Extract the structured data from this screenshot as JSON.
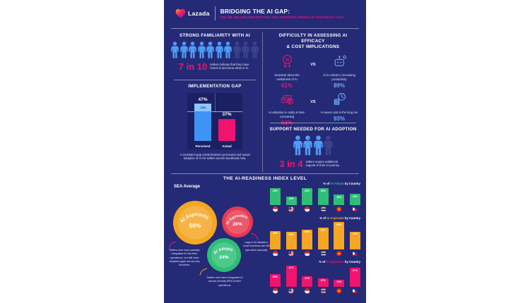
{
  "header": {
    "brand": "Lazada",
    "title": "BRIDGING THE AI GAP:",
    "subtitle": "ONLINE SELLER PERCEPTIONS AND ADOPTION TRENDS IN SOUTHEAST ASIA"
  },
  "colors": {
    "background": "#242A75",
    "panel": "#1B2063",
    "blue": "#4F9CF7",
    "dim_blue": "#3C438D",
    "pink": "#F0146E",
    "light_blue": "#6FA9FF",
    "yellow": "#F5A623",
    "red": "#E73A52",
    "green": "#2EBE76"
  },
  "familiarity": {
    "heading": "STRONG FAMILIARITY WITH AI",
    "total": 10,
    "highlighted": 7,
    "stat": "7 in 10",
    "caption": "sellers indicate that they have heard of and know what AI is."
  },
  "implementation_gap": {
    "heading": "IMPLEMENTATION GAP",
    "gap_label": "-10%",
    "caption": "A consistent gap exists between perceived and actual adoption of AI for sellers across Southeast Asia."
  },
  "difficulty": {
    "heading_line1": "DIFFICULTY IN ASSESSING AI EFFICACY",
    "heading_line2": "& COST IMPLICATIONS",
    "vs": "VS",
    "pairs": [
      {
        "left_icon": "ai-badge-icon",
        "left_text": "Sceptical about the usefulness of AI",
        "left_value": "61%",
        "right_icon": "robot-icon",
        "right_text": "AI is critical in increasing productivity",
        "right_value": "89%"
      },
      {
        "left_icon": "money-stack-icon",
        "left_text": "AI adoption is costly & time-consuming",
        "left_value": "64%",
        "right_icon": "coins-clock-icon",
        "right_text": "AI saves cost in the long run",
        "right_value": "93%"
      }
    ]
  },
  "support": {
    "heading": "SUPPORT NEEDED FOR AI ADOPTION",
    "total": 4,
    "highlighted": 3,
    "stat": "3 in 4",
    "caption": "sellers require additional support in their AI journey."
  },
  "readiness": {
    "heading": "THE AI-READINESS INDEX LEVEL",
    "sea_average_label": "SEA Average",
    "bubbles": [
      {
        "label": "AI Aspirants",
        "value": "50%",
        "color": "#F5A623",
        "note": "Sellers who have partially integrated AI into their operations, but still have adoption gaps across key functions."
      },
      {
        "label": "AI Agnostics",
        "value": "26%",
        "color": "#E73A52",
        "note": "Lags in AI adoption; most functions are still operated manually."
      },
      {
        "label": "AI Adepts",
        "value": "24%",
        "color": "#2EBE76",
        "note": "Sellers who have integrated AI across at least 80% of their operations."
      }
    ]
  },
  "chart_data": [
    {
      "id": "implementation_gap",
      "type": "bar",
      "title": "IMPLEMENTATION GAP",
      "categories": [
        "Perceived",
        "Actual"
      ],
      "values": [
        47,
        37
      ],
      "labels": [
        "47%",
        "37%"
      ],
      "gap_annotation": "-10%",
      "ylim": [
        0,
        55
      ],
      "colors": [
        "#3F93F5",
        "#F0146E"
      ],
      "gap_color": "#8EC4FF"
    },
    {
      "id": "sea_average",
      "type": "pie",
      "title": "SEA Average",
      "categories": [
        "AI Aspirants",
        "AI Agnostics",
        "AI Adepts"
      ],
      "values": [
        50,
        26,
        24
      ],
      "labels": [
        "50%",
        "26%",
        "24%"
      ],
      "colors": [
        "#F5A623",
        "#E73A52",
        "#2EBE76"
      ]
    },
    {
      "id": "adepts_by_country",
      "type": "bar",
      "by_country": true,
      "label_prefix": "% of ",
      "label_term": "AI Adepts",
      "label_suffix": " by Country",
      "term_color": "#2EBE76",
      "bar_color": "#2EBE76",
      "categories": [
        "Singapore",
        "Malaysia",
        "Indonesia",
        "Thailand",
        "Vietnam",
        "Philippines"
      ],
      "flags": [
        "sg",
        "my",
        "id",
        "th",
        "vn",
        "ph"
      ],
      "values": [
        29,
        15,
        29,
        29,
        18,
        19
      ],
      "labels": [
        "29%",
        "15%",
        "29%",
        "29%",
        "18%",
        "19%"
      ],
      "ylim": [
        0,
        32
      ]
    },
    {
      "id": "aspirants_by_country",
      "type": "bar",
      "by_country": true,
      "label_prefix": "% of ",
      "label_term": "AI Aspirants",
      "label_suffix": " by Country",
      "term_color": "#F5A623",
      "bar_color": "#F5A623",
      "categories": [
        "Singapore",
        "Malaysia",
        "Indonesia",
        "Thailand",
        "Vietnam",
        "Philippines"
      ],
      "flags": [
        "sg",
        "my",
        "id",
        "th",
        "vn",
        "ph"
      ],
      "values": [
        46,
        43,
        50,
        54,
        68,
        44
      ],
      "labels": [
        "46%",
        "43%",
        "50%",
        "54%",
        "68%",
        "44%"
      ],
      "ylim": [
        0,
        72
      ]
    },
    {
      "id": "agnostics_by_country",
      "type": "bar",
      "by_country": true,
      "label_prefix": "% of ",
      "label_term": "AI Agnostics",
      "label_suffix": " by Country",
      "term_color": "#F0146E",
      "bar_color": "#F0146E",
      "categories": [
        "Singapore",
        "Malaysia",
        "Indonesia",
        "Thailand",
        "Vietnam",
        "Philippines"
      ],
      "flags": [
        "sg",
        "my",
        "id",
        "th",
        "vn",
        "ph"
      ],
      "values": [
        25,
        42,
        21,
        17,
        14,
        37
      ],
      "labels": [
        "25%",
        "42%",
        "21%",
        "17%",
        "14%",
        "37%"
      ],
      "ylim": [
        0,
        45
      ]
    }
  ]
}
